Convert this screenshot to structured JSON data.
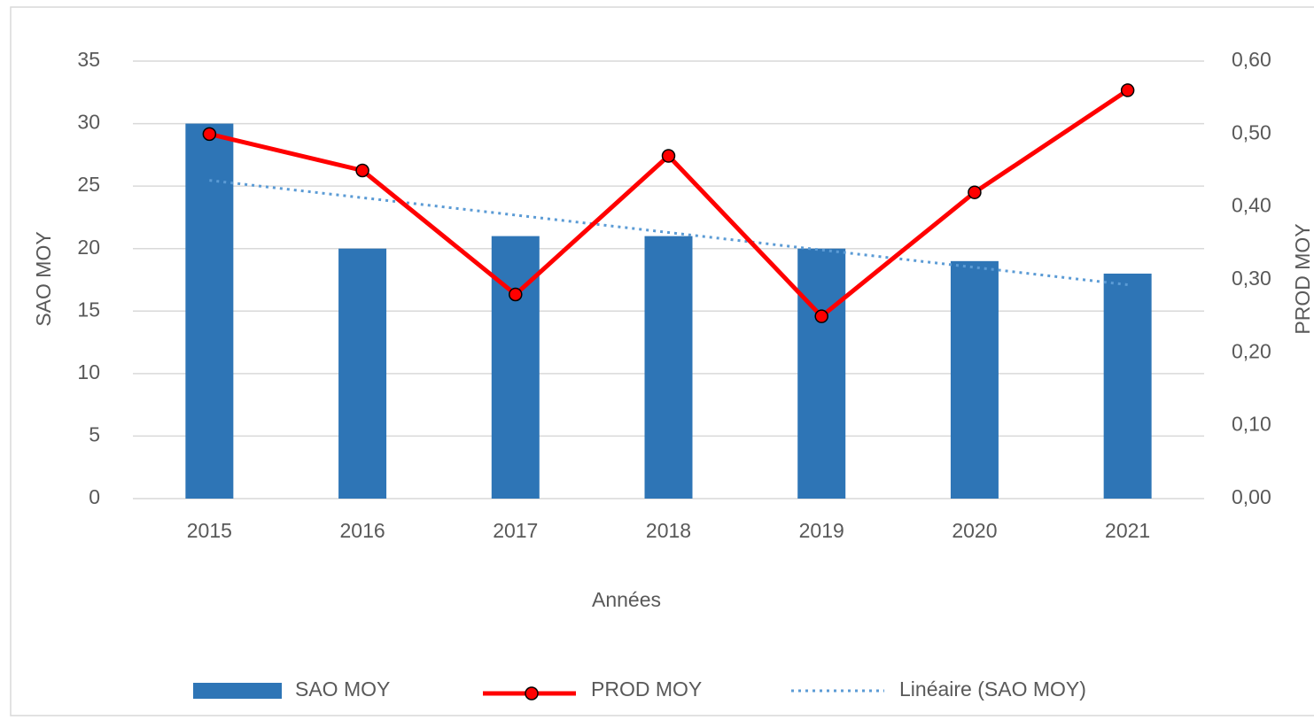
{
  "chart_data": {
    "type": "bar",
    "x_label": "Années",
    "y_label": "SAO MOY",
    "y2_label": "PROD MOY",
    "categories": [
      "2015",
      "2016",
      "2017",
      "2018",
      "2019",
      "2020",
      "2021"
    ],
    "series": [
      {
        "name": "SAO MOY",
        "type": "bar",
        "color": "#2e75b6",
        "values": [
          30,
          20,
          21,
          21,
          20,
          19,
          18
        ]
      },
      {
        "name": "PROD MOY",
        "type": "line",
        "axis": "y2",
        "marker": "circle",
        "color": "#ff0000",
        "values": [
          0.5,
          0.45,
          0.28,
          0.47,
          0.25,
          0.42,
          0.56
        ]
      },
      {
        "name": "Linéaire (SAO MOY)",
        "type": "line",
        "line_style": "dotted",
        "color": "#5b9bd5",
        "values": [
          25.46,
          24.07,
          22.68,
          21.29,
          19.89,
          18.5,
          17.11
        ]
      }
    ],
    "ylim": [
      0,
      35
    ],
    "yticks": [
      0,
      5,
      10,
      15,
      20,
      25,
      30,
      35
    ],
    "y2lim": [
      0,
      0.6
    ],
    "y2ticks": [
      {
        "value": 0,
        "label": "0,00"
      },
      {
        "value": 0.1,
        "label": "0,10"
      },
      {
        "value": 0.2,
        "label": "0,20"
      },
      {
        "value": 0.3,
        "label": "0,30"
      },
      {
        "value": 0.4,
        "label": "0,40"
      },
      {
        "value": 0.5,
        "label": "0,50"
      },
      {
        "value": 0.6,
        "label": "0,60"
      }
    ],
    "grid": true,
    "legend": "bottom"
  }
}
